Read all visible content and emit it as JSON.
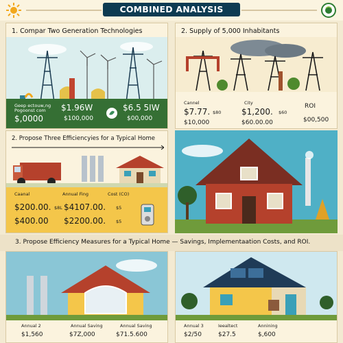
{
  "header": {
    "title": "COMBINED ANALYSIS",
    "sun_icon": "sun-icon",
    "badge_icon": "globe-badge-icon"
  },
  "panel1": {
    "title": "1. Compar Two Generation Technologies",
    "tiny_label": "Geep ectouw,ng",
    "tiny_label2": "Pogoonst com",
    "left_value": "$,0000",
    "mid_value": "$1.96W",
    "mid_sub": "$100,000",
    "right_value": "$6.5 5IW",
    "right_sub": "$00,000"
  },
  "panel2": {
    "title": "2. Supply of 5,000 Inhabitants",
    "col1_label": "Cannel",
    "col1_value": "$7.77.",
    "col1_small": "$80",
    "col1_sub": "$10,000",
    "col2_label": "City",
    "col2_value": "$1,200.",
    "col2_small": "$60",
    "col2_sub": "$60.00.00",
    "col3_label": "ROI",
    "col3_sub": "$00,500"
  },
  "panel3": {
    "title": "2. Propose Three Efficiencyies for a Typical Home",
    "label1": "Caanal",
    "label2": "Annual Fing",
    "label3": "Cost (CO)",
    "value1": "$200.00.",
    "value1_small": "$8L",
    "value2": "$4107.00.",
    "value2_small": "$5",
    "sub1": "$400.00",
    "sub2": "$2200.00.",
    "sub2_small": "$5"
  },
  "strip": {
    "title": "3. Propose Efficiency Measures for a Typical Home — Savings, Implementaation Costs, and ROI."
  },
  "panel5": {
    "label1": "Annual 2",
    "label2": "Annual Saving",
    "label3": "Annual Saving",
    "value1": "$1,560",
    "value2": "$7Z,000",
    "value3": "$71.5.600"
  },
  "panel6": {
    "label1": "Annual 3",
    "label2": "Ieealtect",
    "label3": "Annining",
    "value1": "$2/50",
    "value2": "$27.5",
    "value3": "$,600"
  },
  "colors": {
    "navy": "#0d3b52",
    "panel_blue": "#2f7f93",
    "green": "#4f8a2e",
    "red": "#b5412c",
    "teal": "#3aa0b8"
  }
}
